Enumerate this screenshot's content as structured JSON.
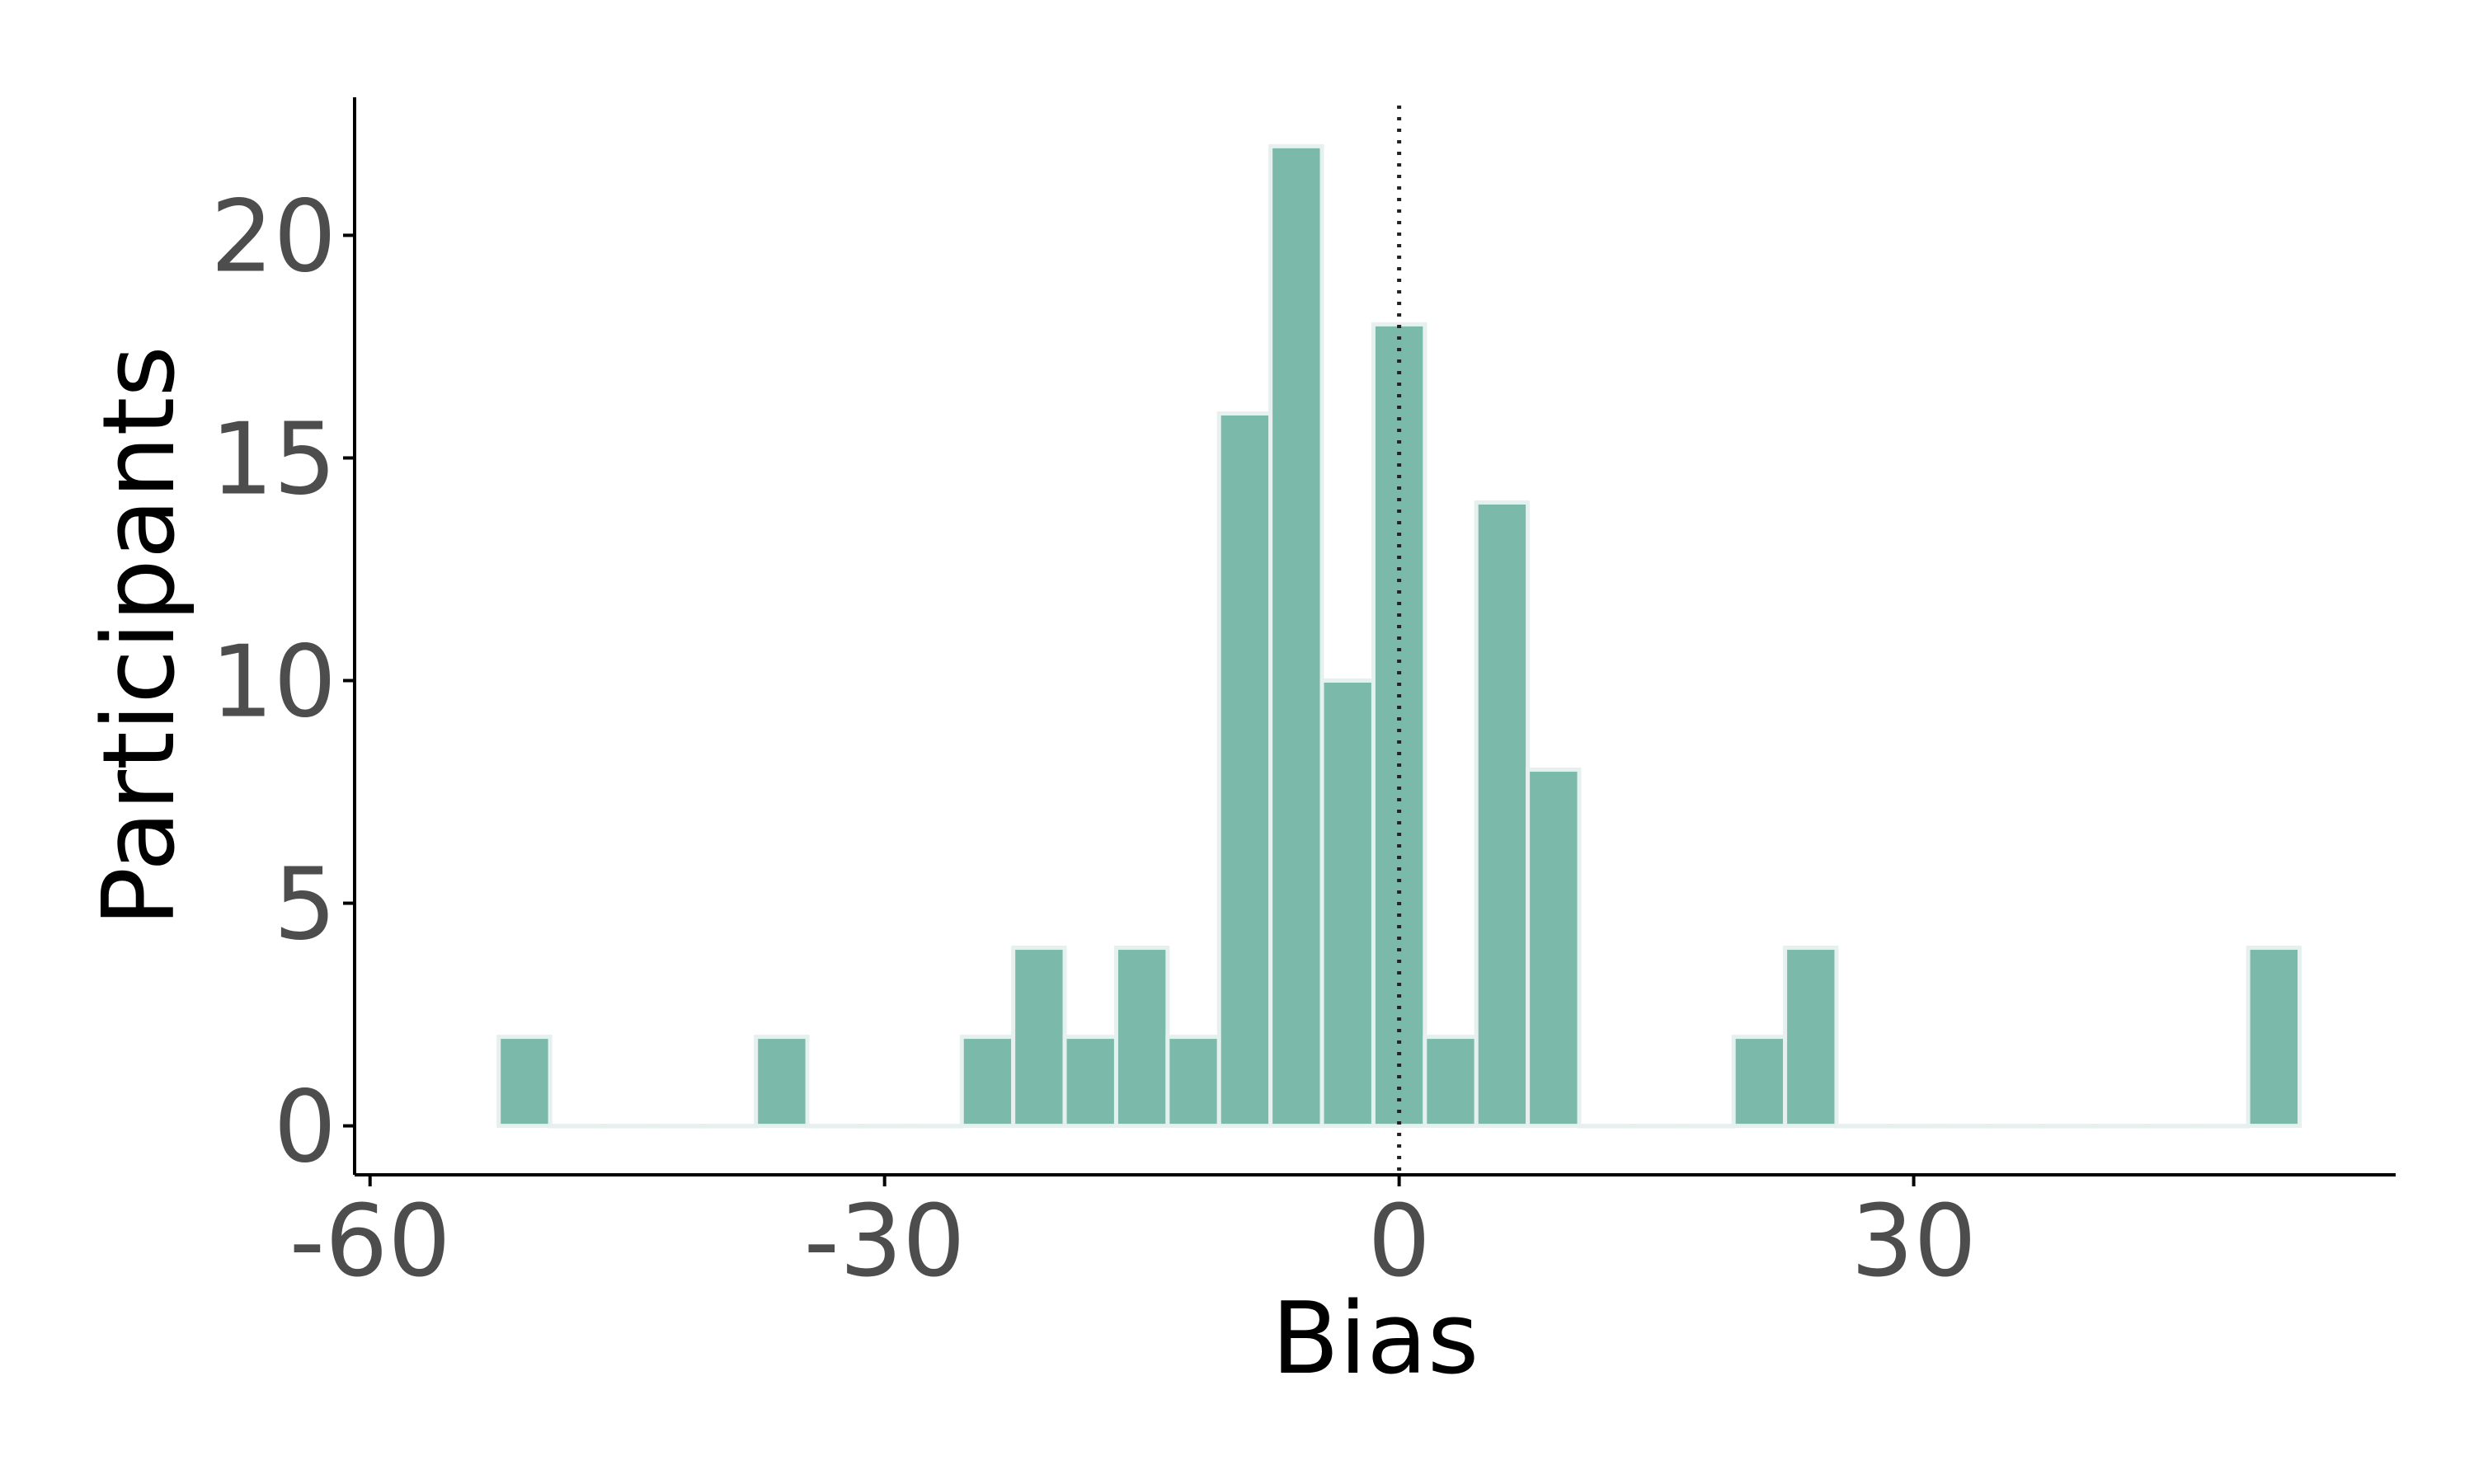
{
  "chart_data": {
    "type": "bar",
    "subtype": "histogram",
    "title": "",
    "xlabel": "Bias",
    "ylabel": "Participants",
    "binwidth": 3,
    "bins": [
      {
        "x": -51,
        "count": 2
      },
      {
        "x": -48,
        "count": 0
      },
      {
        "x": -45,
        "count": 0
      },
      {
        "x": -42,
        "count": 0
      },
      {
        "x": -39,
        "count": 0
      },
      {
        "x": -36,
        "count": 2
      },
      {
        "x": -33,
        "count": 0
      },
      {
        "x": -30,
        "count": 0
      },
      {
        "x": -27,
        "count": 0
      },
      {
        "x": -24,
        "count": 2
      },
      {
        "x": -21,
        "count": 4
      },
      {
        "x": -18,
        "count": 2
      },
      {
        "x": -15,
        "count": 4
      },
      {
        "x": -12,
        "count": 2
      },
      {
        "x": -9,
        "count": 16
      },
      {
        "x": -6,
        "count": 22
      },
      {
        "x": -3,
        "count": 10
      },
      {
        "x": 0,
        "count": 18
      },
      {
        "x": 3,
        "count": 2
      },
      {
        "x": 6,
        "count": 14
      },
      {
        "x": 9,
        "count": 8
      },
      {
        "x": 12,
        "count": 0
      },
      {
        "x": 15,
        "count": 0
      },
      {
        "x": 18,
        "count": 0
      },
      {
        "x": 21,
        "count": 2
      },
      {
        "x": 24,
        "count": 4
      },
      {
        "x": 27,
        "count": 0
      },
      {
        "x": 30,
        "count": 0
      },
      {
        "x": 33,
        "count": 0
      },
      {
        "x": 36,
        "count": 0
      },
      {
        "x": 39,
        "count": 0
      },
      {
        "x": 42,
        "count": 0
      },
      {
        "x": 45,
        "count": 0
      },
      {
        "x": 48,
        "count": 0
      },
      {
        "x": 51,
        "count": 4
      }
    ],
    "xlim": [
      -60.9,
      58.1
    ],
    "ylim": [
      -1.1,
      23.1
    ],
    "x_ticks": [
      -60,
      -30,
      0,
      30
    ],
    "x_tick_labels": [
      "-60",
      "-30",
      "0",
      "30"
    ],
    "y_ticks": [
      0,
      5,
      10,
      15,
      20
    ],
    "y_tick_labels": [
      "0",
      "5",
      "10",
      "15",
      "20"
    ],
    "reference_line": {
      "x": 0,
      "style": "dotted"
    },
    "grid": false,
    "legend": "none",
    "colors": {
      "bar_fill": "#7bbaaa",
      "bar_stroke": "#e6f0ee",
      "axis": "#000000",
      "tick_text": "#4d4d4d",
      "title_text": "#000000"
    }
  }
}
